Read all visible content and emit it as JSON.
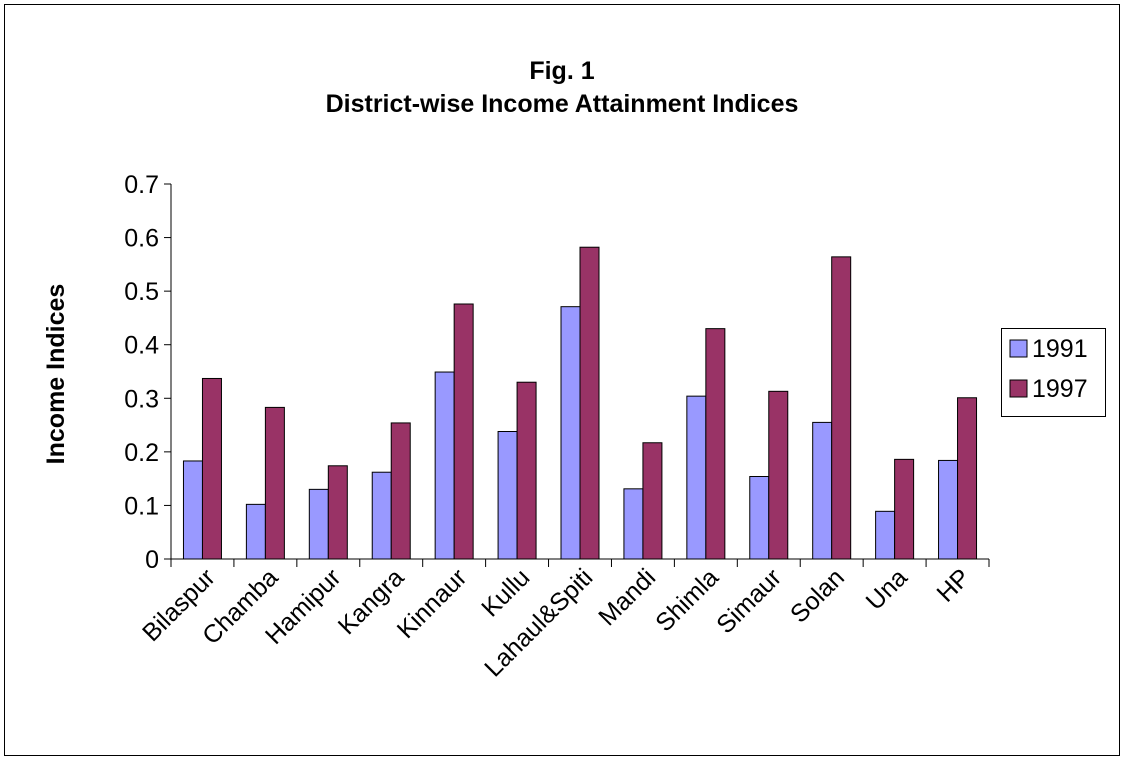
{
  "chart_data": {
    "type": "bar",
    "title": "Fig. 1",
    "subtitle": "District-wise Income Attainment Indices",
    "xlabel": "",
    "ylabel": "Income Indices",
    "ylim": [
      0,
      0.7
    ],
    "yticks": [
      "0",
      "0.1",
      "0.2",
      "0.3",
      "0.4",
      "0.5",
      "0.6",
      "0.7"
    ],
    "grid": false,
    "legend_position": "right",
    "categories": [
      "Bilaspur",
      "Chamba",
      "Hamipur",
      "Kangra",
      "Kinnaur",
      "Kullu",
      "Lahaul&Spiti",
      "Mandi",
      "Shimla",
      "Simaur",
      "Solan",
      "Una",
      "HP"
    ],
    "series": [
      {
        "name": "1991",
        "color": "#9999ff",
        "values": [
          0.183,
          0.102,
          0.13,
          0.162,
          0.349,
          0.238,
          0.471,
          0.131,
          0.304,
          0.154,
          0.255,
          0.089,
          0.184
        ]
      },
      {
        "name": "1997",
        "color": "#993366",
        "values": [
          0.337,
          0.283,
          0.174,
          0.254,
          0.476,
          0.33,
          0.582,
          0.217,
          0.43,
          0.313,
          0.564,
          0.186,
          0.301
        ]
      }
    ]
  }
}
